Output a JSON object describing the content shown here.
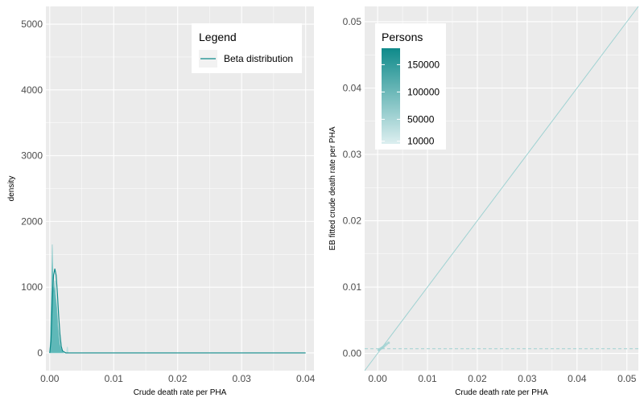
{
  "colors": {
    "panel_bg": "#ebebeb",
    "grid": "#ffffff",
    "teal": "#0e8a8a",
    "teal_light": "#bfe0e0",
    "rug": "#9fd2d2"
  },
  "chart_data": [
    {
      "type": "area",
      "title": "",
      "xlabel": "Crude death rate per PHA",
      "ylabel": "density",
      "xlim": [
        -0.0006,
        0.0413
      ],
      "ylim": [
        -270,
        5270
      ],
      "x_ticks": [
        0.0,
        0.01,
        0.02,
        0.03,
        0.04
      ],
      "x_tick_labels": [
        "0.00",
        "0.01",
        "0.02",
        "0.03",
        "0.04"
      ],
      "y_ticks": [
        0,
        1000,
        2000,
        3000,
        4000,
        5000
      ],
      "y_tick_labels": [
        "0",
        "1000",
        "2000",
        "3000",
        "4000",
        "5000"
      ],
      "grid": true,
      "legend": {
        "title": "Legend",
        "position": "top-right",
        "entries": [
          {
            "label": "Beta distribution"
          }
        ]
      },
      "series": [
        {
          "name": "Beta distribution",
          "kind": "line",
          "x": [
            0.0,
            0.0002,
            0.0004,
            0.0006,
            0.0008,
            0.001,
            0.0012,
            0.0014,
            0.0016,
            0.0018,
            0.002,
            0.0025,
            0.003,
            0.04
          ],
          "y": [
            0,
            180,
            800,
            1180,
            1280,
            1180,
            900,
            560,
            280,
            100,
            30,
            0,
            0,
            0
          ]
        },
        {
          "kind": "filled_density",
          "x": [
            0.0,
            0.0001,
            0.0002,
            0.0003,
            0.0004,
            0.0005,
            0.0006,
            0.0007,
            0.0008,
            0.0009,
            0.001,
            0.0011,
            0.0012,
            0.0013,
            0.0014,
            0.0015,
            0.0016,
            0.0018,
            0.002,
            0.0022
          ],
          "y": [
            0,
            200,
            650,
            1050,
            1650,
            1200,
            1000,
            950,
            1100,
            900,
            800,
            700,
            550,
            400,
            300,
            200,
            120,
            60,
            20,
            0
          ]
        },
        {
          "kind": "small_bump",
          "x": [
            0.0026,
            0.0027,
            0.0028,
            0.0029
          ],
          "y": [
            0,
            90,
            90,
            0
          ]
        }
      ]
    },
    {
      "type": "scatter",
      "title": "",
      "xlabel": "Crude death rate per PHA",
      "ylabel": "EB fitted crude death rate per PHA",
      "xlim": [
        -0.0026,
        0.0523
      ],
      "ylim": [
        -0.0026,
        0.0523
      ],
      "x_ticks": [
        0.0,
        0.01,
        0.02,
        0.03,
        0.04,
        0.05
      ],
      "x_tick_labels": [
        "0.00",
        "0.01",
        "0.02",
        "0.03",
        "0.04",
        "0.05"
      ],
      "y_ticks": [
        0.0,
        0.01,
        0.02,
        0.03,
        0.04,
        0.05
      ],
      "y_tick_labels": [
        "0.00",
        "0.01",
        "0.02",
        "0.03",
        "0.04",
        "0.05"
      ],
      "grid": true,
      "identity_line": true,
      "hline": 0.0007,
      "legend": {
        "title": "Persons",
        "position": "top-left",
        "colorbar": true,
        "range": [
          5000,
          180000
        ],
        "labels": [
          "150000",
          "100000",
          "50000",
          "10000"
        ],
        "label_values": [
          150000,
          100000,
          50000,
          10000
        ]
      },
      "points": [
        {
          "x": 0.0002,
          "y": 0.0005
        },
        {
          "x": 0.0004,
          "y": 0.0006
        },
        {
          "x": 0.0006,
          "y": 0.0007
        },
        {
          "x": 0.0008,
          "y": 0.0008
        },
        {
          "x": 0.001,
          "y": 0.0009
        },
        {
          "x": 0.0012,
          "y": 0.001
        },
        {
          "x": 0.0015,
          "y": 0.0012
        },
        {
          "x": 0.0018,
          "y": 0.0014
        },
        {
          "x": 0.0022,
          "y": 0.0016
        }
      ]
    }
  ]
}
